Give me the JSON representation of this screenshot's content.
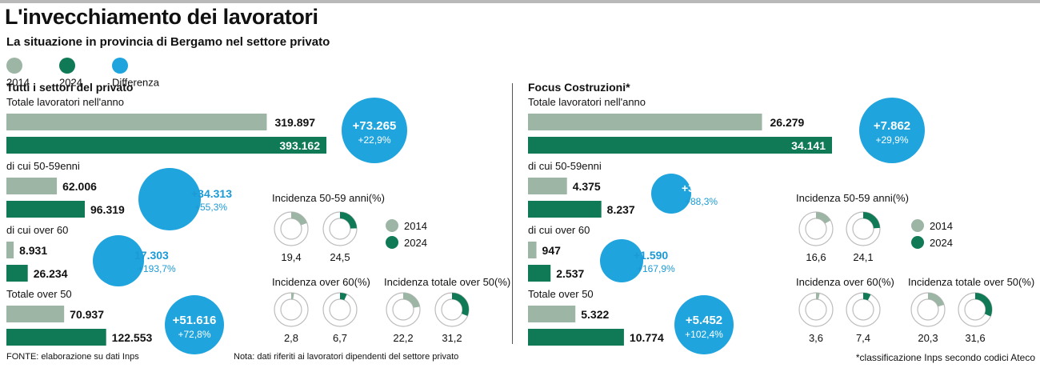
{
  "title": "L'invecchiamento dei lavoratori",
  "subtitle": "La situazione in provincia di Bergamo nel settore privato",
  "legend": [
    {
      "label": "2014",
      "color": "#9db5a5"
    },
    {
      "label": "2024",
      "color": "#0f7a55"
    },
    {
      "label": "Differenza",
      "color": "#1fa4dd"
    }
  ],
  "colors": {
    "y2014": "#9db5a5",
    "y2024": "#0f7a55",
    "diff": "#1fa4dd",
    "diff_text": "#1b9ad6",
    "ring": "#cfcfcf"
  },
  "footer": {
    "source": "FONTE: elaborazione su dati Inps",
    "note": "Nota: dati riferiti ai lavoratori dipendenti del settore privato",
    "classification": "*classificazione Inps secondo codici Ateco"
  },
  "chart_data": [
    {
      "type": "bar",
      "title": "Tutti i settori del privato",
      "series_names": [
        "2014",
        "2024"
      ],
      "groups": [
        {
          "label": "Totale lavoratori nell'anno",
          "v2014": 319897,
          "v2024": 393162,
          "label2014": "319.897",
          "label2024": "393.162",
          "diff": "+73.265",
          "diff_pct": "+22,9%"
        },
        {
          "label": "di cui 50-59enni",
          "v2014": 62006,
          "v2024": 96319,
          "label2014": "62.006",
          "label2024": "96.319",
          "diff": "+34.313",
          "diff_pct": "+55,3%"
        },
        {
          "label": "di cui over 60",
          "v2014": 8931,
          "v2024": 26234,
          "label2014": "8.931",
          "label2024": "26.234",
          "diff": "17.303",
          "diff_pct": "+193,7%"
        },
        {
          "label": "Totale over 50",
          "v2014": 70937,
          "v2024": 122553,
          "label2014": "70.937",
          "label2024": "122.553",
          "diff": "+51.616",
          "diff_pct": "+72,8%"
        }
      ],
      "donuts": {
        "legend": [
          "2014",
          "2024"
        ],
        "groups": [
          {
            "title": "Incidenza 50-59 anni(%)",
            "values": [
              19.4,
              24.5
            ],
            "labels": [
              "19,4",
              "24,5"
            ]
          },
          {
            "title": "Incidenza over 60(%)",
            "values": [
              2.8,
              6.7
            ],
            "labels": [
              "2,8",
              "6,7"
            ]
          },
          {
            "title": "Incidenza totale over 50(%)",
            "values": [
              22.2,
              31.2
            ],
            "labels": [
              "22,2",
              "31,2"
            ]
          }
        ]
      }
    },
    {
      "type": "bar",
      "title": "Focus Costruzioni*",
      "series_names": [
        "2014",
        "2024"
      ],
      "groups": [
        {
          "label": "Totale lavoratori nell'anno",
          "v2014": 26279,
          "v2024": 34141,
          "label2014": "26.279",
          "label2024": "34.141",
          "diff": "+7.862",
          "diff_pct": "+29,9%"
        },
        {
          "label": "di cui 50-59enni",
          "v2014": 4375,
          "v2024": 8237,
          "label2014": "4.375",
          "label2024": "8.237",
          "diff": "+3.862",
          "diff_pct": "+88,3%"
        },
        {
          "label": "di cui over 60",
          "v2014": 947,
          "v2024": 2537,
          "label2014": "947",
          "label2024": "2.537",
          "diff": "+1.590",
          "diff_pct": "+167,9%"
        },
        {
          "label": "Totale over 50",
          "v2014": 5322,
          "v2024": 10774,
          "label2014": "5.322",
          "label2024": "10.774",
          "diff": "+5.452",
          "diff_pct": "+102,4%"
        }
      ],
      "donuts": {
        "legend": [
          "2014",
          "2024"
        ],
        "groups": [
          {
            "title": "Incidenza 50-59 anni(%)",
            "values": [
              16.6,
              24.1
            ],
            "labels": [
              "16,6",
              "24,1"
            ]
          },
          {
            "title": "Incidenza over 60(%)",
            "values": [
              3.6,
              7.4
            ],
            "labels": [
              "3,6",
              "7,4"
            ]
          },
          {
            "title": "Incidenza totale over 50(%)",
            "values": [
              20.3,
              31.6
            ],
            "labels": [
              "20,3",
              "31,6"
            ]
          }
        ]
      }
    }
  ]
}
